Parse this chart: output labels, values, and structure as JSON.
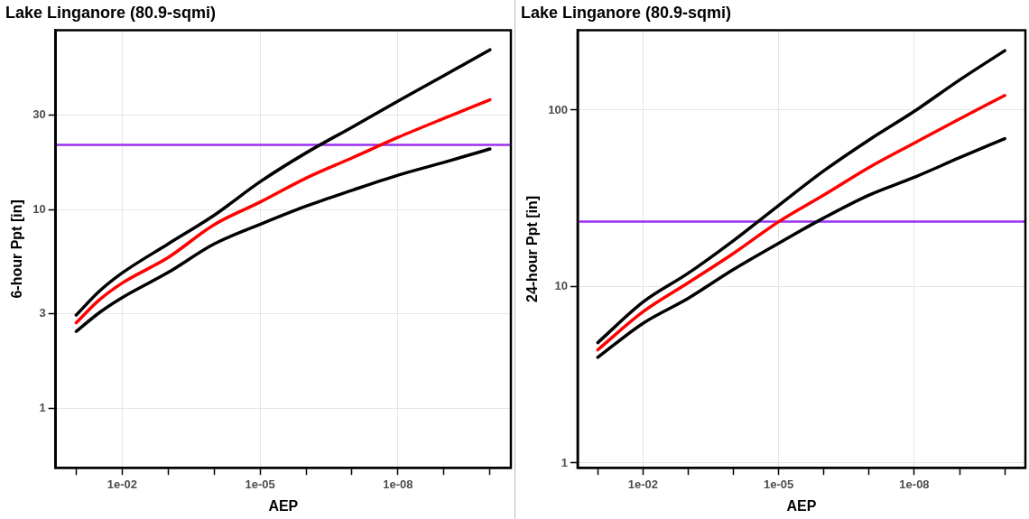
{
  "chart_data": [
    {
      "type": "line",
      "title": "Lake Linganore (80.9-sqmi)",
      "xlabel": "AEP",
      "ylabel": "6-hour Ppt [in]",
      "log": "xy",
      "grid": true,
      "legend": false,
      "marker": "none",
      "line_style": "solid",
      "x": [
        0.1,
        0.0316,
        0.01,
        0.001,
        0.0001,
        1e-05,
        1e-06,
        1e-07,
        1e-08,
        1e-09,
        1e-10
      ],
      "xlim": [
        0.28,
        3.5e-11
      ],
      "xticks": [
        {
          "value": 0.1,
          "label": null
        },
        {
          "value": 0.01,
          "label": "1e-02"
        },
        {
          "value": 0.001,
          "label": null
        },
        {
          "value": 0.0001,
          "label": null
        },
        {
          "value": 1e-05,
          "label": "1e-05"
        },
        {
          "value": 1e-06,
          "label": null
        },
        {
          "value": 1e-07,
          "label": null
        },
        {
          "value": 1e-08,
          "label": "1e-08"
        },
        {
          "value": 1e-09,
          "label": null
        },
        {
          "value": 1e-10,
          "label": null
        }
      ],
      "ylim": [
        0.5,
        80
      ],
      "yticks": [
        1,
        3,
        10,
        30
      ],
      "series": [
        {
          "color": "#000000",
          "values": [
            2.94,
            3.87,
            4.79,
            6.71,
            9.36,
            13.8,
            19.3,
            26.0,
            35.2,
            47.3,
            63.8
          ]
        },
        {
          "color": "#ff0000",
          "values": [
            2.69,
            3.5,
            4.26,
            5.73,
            8.39,
            10.9,
            14.4,
            18.2,
            23.1,
            28.8,
            35.7
          ]
        },
        {
          "color": "#000000",
          "values": [
            2.43,
            3.02,
            3.6,
            4.82,
            6.71,
            8.42,
            10.4,
            12.5,
            14.9,
            17.3,
            20.2
          ]
        }
      ],
      "ref_lines": [
        {
          "axis": "y",
          "value": 21.2,
          "color": "#9b30f0"
        }
      ]
    },
    {
      "type": "line",
      "title": "Lake Linganore (80.9-sqmi)",
      "xlabel": "AEP",
      "ylabel": "24-hour Ppt [in]",
      "log": "xy",
      "grid": true,
      "legend": false,
      "marker": "none",
      "line_style": "solid",
      "x": [
        0.1,
        0.01,
        0.001,
        0.0001,
        1e-05,
        1e-06,
        1e-07,
        1e-08,
        1e-09,
        1e-10
      ],
      "xlim": [
        0.28,
        3.5e-11
      ],
      "xticks": [
        {
          "value": 0.1,
          "label": null
        },
        {
          "value": 0.01,
          "label": "1e-02"
        },
        {
          "value": 0.001,
          "label": null
        },
        {
          "value": 0.0001,
          "label": null
        },
        {
          "value": 1e-05,
          "label": "1e-05"
        },
        {
          "value": 1e-06,
          "label": null
        },
        {
          "value": 1e-07,
          "label": null
        },
        {
          "value": 1e-08,
          "label": "1e-08"
        },
        {
          "value": 1e-09,
          "label": null
        },
        {
          "value": 1e-10,
          "label": null
        }
      ],
      "ylim": [
        0.94,
        283
      ],
      "yticks": [
        1,
        10,
        100
      ],
      "series": [
        {
          "color": "#000000",
          "values": [
            4.81,
            8.17,
            11.9,
            18.2,
            28.8,
            45.3,
            67.8,
            98.4,
            148,
            217
          ]
        },
        {
          "color": "#ff0000",
          "values": [
            4.38,
            7.19,
            10.5,
            15.4,
            23.3,
            33.0,
            47.3,
            65.0,
            89.1,
            121
          ]
        },
        {
          "color": "#000000",
          "values": [
            3.97,
            6.19,
            8.58,
            12.5,
            17.6,
            24.5,
            33.0,
            41.6,
            53.7,
            68.9
          ]
        }
      ],
      "ref_lines": [
        {
          "axis": "y",
          "value": 23.3,
          "color": "#9b30f0"
        }
      ]
    }
  ]
}
